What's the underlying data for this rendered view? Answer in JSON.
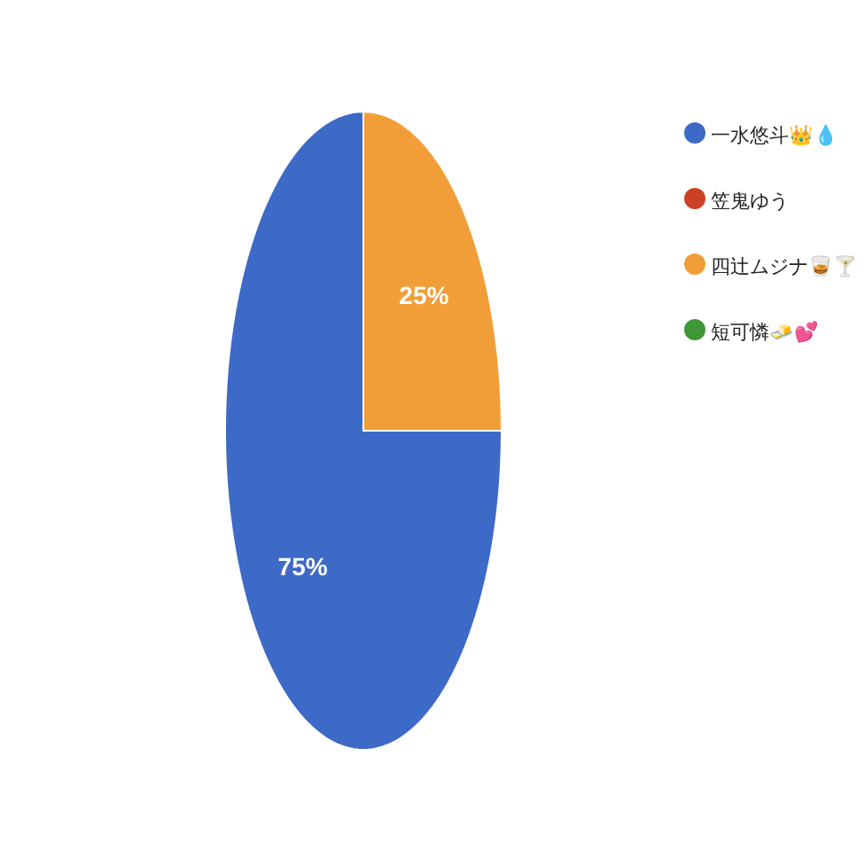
{
  "chart_data": {
    "type": "pie",
    "categories": [
      "一水悠斗👑💧",
      "笠鬼ゆう",
      "四辻ムジナ🥃🍸",
      "短可憐🧈💕"
    ],
    "values": [
      75,
      0,
      25,
      0
    ],
    "colors": [
      "#3d69c7",
      "#cc4125",
      "#f29e38",
      "#3f9837"
    ],
    "value_labels": [
      "75%",
      null,
      "25%",
      null
    ],
    "legend": "right"
  }
}
